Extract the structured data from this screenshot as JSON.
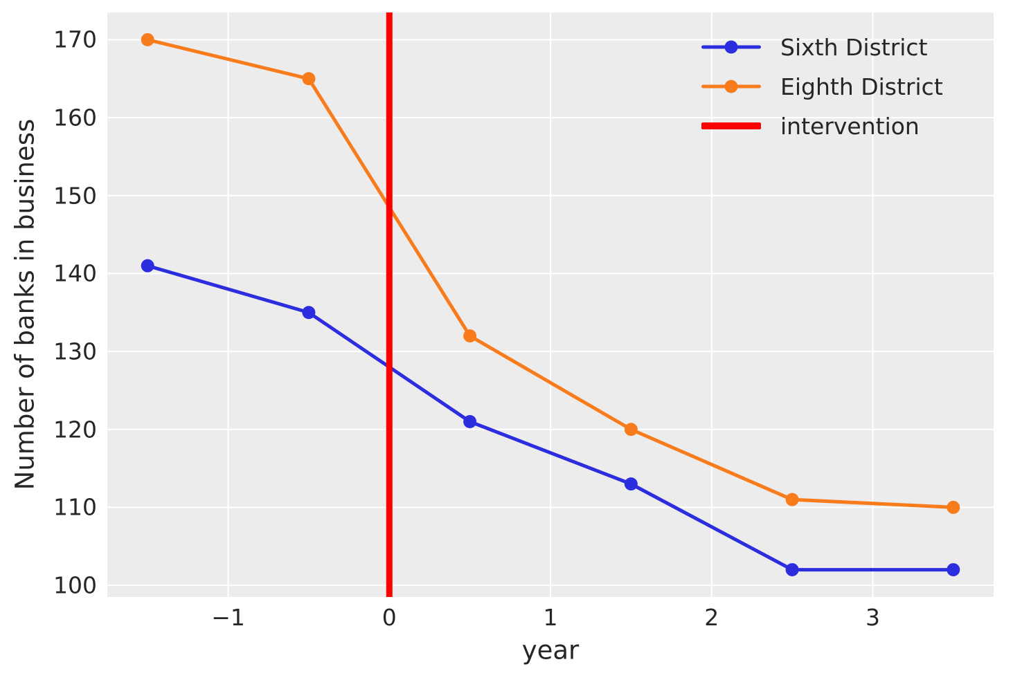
{
  "figure": {
    "background": "#ffffff",
    "plot_background": "#ececec",
    "grid_color": "#ffffff",
    "text_color": "#262626"
  },
  "chart_data": {
    "type": "line",
    "title": "",
    "xlabel": "year",
    "ylabel": "Number of banks in business",
    "x": [
      -1.5,
      -0.5,
      0.5,
      1.5,
      2.5,
      3.5
    ],
    "series": [
      {
        "name": "Sixth District",
        "color": "#2d2de0",
        "marker": "circle",
        "values": [
          141,
          135,
          121,
          113,
          102,
          102
        ]
      },
      {
        "name": "Eighth District",
        "color": "#f97c1c",
        "marker": "circle",
        "values": [
          170,
          165,
          132,
          120,
          111,
          110
        ]
      }
    ],
    "intervention": {
      "x": 0,
      "color": "#ff0000",
      "label": "intervention"
    },
    "xlim": [
      -1.75,
      3.75
    ],
    "ylim": [
      98.5,
      173.5
    ],
    "xticks": [
      -1,
      0,
      1,
      2,
      3
    ],
    "xtick_labels": [
      "−1",
      "0",
      "1",
      "2",
      "3"
    ],
    "yticks": [
      100,
      110,
      120,
      130,
      140,
      150,
      160,
      170
    ],
    "ytick_labels": [
      "100",
      "110",
      "120",
      "130",
      "140",
      "150",
      "160",
      "170"
    ],
    "grid": true,
    "legend": {
      "position": "upper right",
      "frame": false,
      "items": [
        {
          "label": "Sixth District",
          "color": "#2d2de0",
          "type": "line-marker"
        },
        {
          "label": "Eighth District",
          "color": "#f97c1c",
          "type": "line-marker"
        },
        {
          "label": "intervention",
          "color": "#ff0000",
          "type": "thick-line"
        }
      ]
    }
  }
}
